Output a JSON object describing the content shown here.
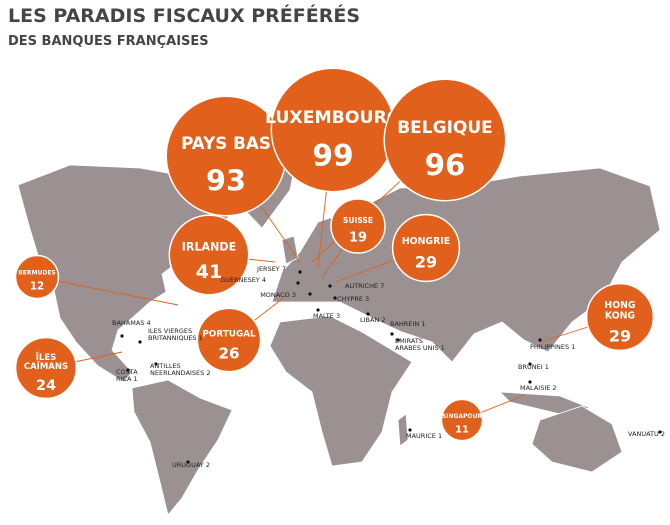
{
  "header": {
    "title": "LES PARADIS FISCAUX PRÉFÉRÉS",
    "subtitle": "DES BANQUES FRANÇAISES"
  },
  "bubbles": [
    {
      "name": [
        "PAYS BAS"
      ],
      "value": 93
    },
    {
      "name": [
        "LUXEMBOURG"
      ],
      "value": 99
    },
    {
      "name": [
        "BELGIQUE"
      ],
      "value": 96
    },
    {
      "name": [
        "IRLANDE"
      ],
      "value": 41
    },
    {
      "name": [
        "SUISSE"
      ],
      "value": 19
    },
    {
      "name": [
        "HONGRIE"
      ],
      "value": 29
    },
    {
      "name": [
        "BERMUDES"
      ],
      "value": 12
    },
    {
      "name": [
        "PORTUGAL"
      ],
      "value": 26
    },
    {
      "name": [
        "ÎLES",
        "CAÏMANS"
      ],
      "value": 24
    },
    {
      "name": [
        "HONG",
        "KONG"
      ],
      "value": 29
    },
    {
      "name": [
        "SINGAPOUR"
      ],
      "value": 11
    }
  ],
  "places": [
    {
      "name": [
        "JERSEY"
      ],
      "value": 7
    },
    {
      "name": [
        "GUERNESEY"
      ],
      "value": 4
    },
    {
      "name": [
        "MONACO"
      ],
      "value": 3
    },
    {
      "name": [
        "AUTRICHE"
      ],
      "value": 7
    },
    {
      "name": [
        "CHYPRE"
      ],
      "value": 3
    },
    {
      "name": [
        "MALTE"
      ],
      "value": 3
    },
    {
      "name": [
        "LIBAN"
      ],
      "value": 2
    },
    {
      "name": [
        "BAHREIN"
      ],
      "value": 1
    },
    {
      "name": [
        "EMIRATS",
        "ARABES UNIS"
      ],
      "value": 1
    },
    {
      "name": [
        "BAHAMAS"
      ],
      "value": 4
    },
    {
      "name": [
        "ILES VIERGES",
        "BRITANNIQUES"
      ],
      "value": 1
    },
    {
      "name": [
        "ANTILLES",
        "NEERLANDAISES"
      ],
      "value": 2
    },
    {
      "name": [
        "COSTA",
        "RICA"
      ],
      "value": 1
    },
    {
      "name": [
        "PHILIPPINES"
      ],
      "value": 1
    },
    {
      "name": [
        "BRUNEI"
      ],
      "value": 1
    },
    {
      "name": [
        "MALAISIE"
      ],
      "value": 2
    },
    {
      "name": [
        "MAURICE"
      ],
      "value": 1
    },
    {
      "name": [
        "VANUATU"
      ],
      "value": 2
    },
    {
      "name": [
        "URUGUAY"
      ],
      "value": 2
    }
  ]
}
